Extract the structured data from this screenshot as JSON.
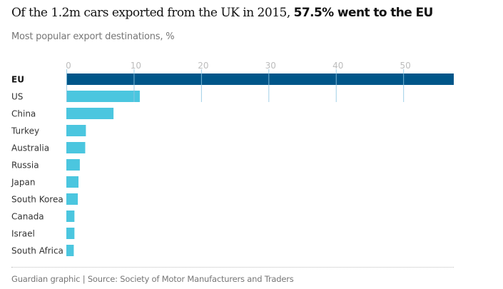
{
  "header": {
    "title_prefix": "Of the 1.2m cars exported from the UK in 2015, ",
    "title_bold": "57.5% went to the EU",
    "subtitle": "Most popular export destinations, %"
  },
  "footer": {
    "source": "Guardian graphic | Source: Society of Motor Manufacturers and Traders"
  },
  "colors": {
    "highlight": "#005689",
    "default": "#4bc6df",
    "gridline": "#8fc7e3",
    "tick_text": "#bdbdbd"
  },
  "chart_data": {
    "type": "bar",
    "orientation": "horizontal",
    "title": "Of the 1.2m cars exported from the UK in 2015, 57.5% went to the EU",
    "subtitle": "Most popular export destinations, %",
    "xlabel": "",
    "ylabel": "",
    "xlim": [
      0,
      57.5
    ],
    "xticks": [
      0,
      10,
      20,
      30,
      40,
      50
    ],
    "tick_labels": [
      "0",
      "10",
      "20",
      "30",
      "40",
      "50"
    ],
    "grid": true,
    "legend": "none",
    "categories": [
      "EU",
      "US",
      "China",
      "Turkey",
      "Australia",
      "Russia",
      "Japan",
      "South Korea",
      "Canada",
      "Israel",
      "South Africa"
    ],
    "values": [
      57.5,
      10.9,
      7.0,
      2.9,
      2.8,
      2.0,
      1.8,
      1.7,
      1.2,
      1.2,
      1.1
    ],
    "highlight": [
      "EU"
    ]
  }
}
